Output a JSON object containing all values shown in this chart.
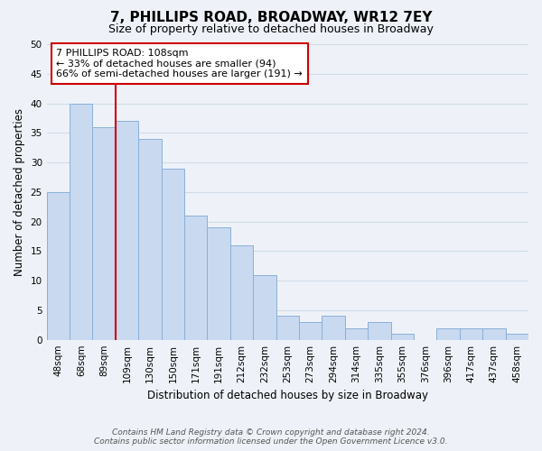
{
  "title": "7, PHILLIPS ROAD, BROADWAY, WR12 7EY",
  "subtitle": "Size of property relative to detached houses in Broadway",
  "xlabel": "Distribution of detached houses by size in Broadway",
  "ylabel": "Number of detached properties",
  "bar_labels": [
    "48sqm",
    "68sqm",
    "89sqm",
    "109sqm",
    "130sqm",
    "150sqm",
    "171sqm",
    "191sqm",
    "212sqm",
    "232sqm",
    "253sqm",
    "273sqm",
    "294sqm",
    "314sqm",
    "335sqm",
    "355sqm",
    "376sqm",
    "396sqm",
    "417sqm",
    "437sqm",
    "458sqm"
  ],
  "bar_values": [
    25,
    40,
    36,
    37,
    34,
    29,
    21,
    19,
    16,
    11,
    4,
    3,
    4,
    2,
    3,
    1,
    0,
    2,
    2,
    2,
    1
  ],
  "bar_color": "#c9d9f0",
  "bar_edge_color": "#8ab0d8",
  "vline_color": "#cc0000",
  "vline_idx": 3,
  "ylim": [
    0,
    50
  ],
  "yticks": [
    0,
    5,
    10,
    15,
    20,
    25,
    30,
    35,
    40,
    45,
    50
  ],
  "annotation_title": "7 PHILLIPS ROAD: 108sqm",
  "annotation_line1": "← 33% of detached houses are smaller (94)",
  "annotation_line2": "66% of semi-detached houses are larger (191) →",
  "annotation_box_color": "#ffffff",
  "annotation_box_edge": "#cc0000",
  "footnote1": "Contains HM Land Registry data © Crown copyright and database right 2024.",
  "footnote2": "Contains public sector information licensed under the Open Government Licence v3.0.",
  "grid_color": "#d0dce8",
  "background_color": "#eef2f8",
  "title_fontsize": 11,
  "subtitle_fontsize": 9,
  "ylabel_fontsize": 8.5,
  "xlabel_fontsize": 8.5,
  "tick_fontsize": 7.5,
  "ann_fontsize": 8,
  "footnote_fontsize": 6.5
}
